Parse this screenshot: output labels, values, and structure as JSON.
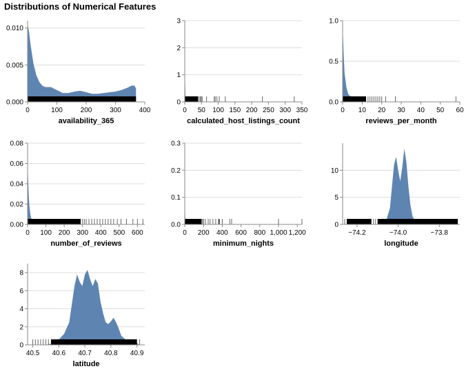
{
  "title": "Distributions of Numerical Features",
  "colors": {
    "density": "#4c78a8",
    "rug": "#000000",
    "grid": "#dddddd",
    "axis": "#888888"
  },
  "chart_data": [
    {
      "type": "area",
      "xlabel": "availability_365",
      "xlim": [
        0,
        400
      ],
      "xticks": [
        0,
        100,
        200,
        300,
        400
      ],
      "xtick_labels": [
        "0",
        "100",
        "200",
        "300",
        "400"
      ],
      "ylim": [
        0,
        0.011
      ],
      "yticks": [
        0,
        0.005,
        0.01
      ],
      "ytick_labels": [
        "0.000",
        "0.005",
        "0.010"
      ],
      "density": {
        "x": [
          0,
          5,
          10,
          20,
          30,
          40,
          50,
          60,
          70,
          80,
          90,
          100,
          120,
          140,
          160,
          180,
          200,
          220,
          240,
          260,
          280,
          300,
          320,
          340,
          355,
          365,
          370
        ],
        "y": [
          0.0105,
          0.0095,
          0.0078,
          0.0052,
          0.0036,
          0.0027,
          0.0022,
          0.002,
          0.002,
          0.002,
          0.0018,
          0.0016,
          0.0012,
          0.0012,
          0.0014,
          0.0015,
          0.0013,
          0.0011,
          0.0011,
          0.0012,
          0.0013,
          0.0014,
          0.0016,
          0.0019,
          0.0022,
          0.0022,
          0.0018
        ]
      },
      "rug": {
        "ranges": [
          [
            0,
            370
          ]
        ],
        "points": []
      }
    },
    {
      "type": "area",
      "xlabel": "calculated_host_listings_count",
      "xlim": [
        0,
        350
      ],
      "xticks": [
        0,
        50,
        100,
        150,
        200,
        250,
        300,
        350
      ],
      "xtick_labels": [
        "0",
        "50",
        "100",
        "150",
        "200",
        "250",
        "300",
        "350"
      ],
      "ylim": [
        0,
        3
      ],
      "yticks": [
        0,
        1,
        2,
        3
      ],
      "ytick_labels": [
        "0",
        "1",
        "2",
        "3"
      ],
      "density": {
        "x": [
          0,
          0.5,
          1,
          2,
          3,
          5
        ],
        "y": [
          1.1,
          1.1,
          0.8,
          0.2,
          0.05,
          0
        ]
      },
      "rug": {
        "ranges": [
          [
            0,
            40
          ]
        ],
        "points": [
          43,
          47,
          49,
          52,
          65,
          88,
          91,
          96,
          103,
          121,
          232,
          327
        ]
      }
    },
    {
      "type": "area",
      "xlabel": "reviews_per_month",
      "xlim": [
        0,
        60
      ],
      "xticks": [
        0,
        10,
        20,
        30,
        40,
        50,
        60
      ],
      "xtick_labels": [
        "0",
        "10",
        "20",
        "30",
        "40",
        "50",
        "60"
      ],
      "ylim": [
        0,
        1.0
      ],
      "yticks": [
        0,
        0.5,
        1.0
      ],
      "ytick_labels": [
        "0.0",
        "0.5",
        "1.0"
      ],
      "density": {
        "x": [
          0,
          0.5,
          1,
          2,
          3,
          4,
          5,
          6,
          8,
          10
        ],
        "y": [
          0.95,
          0.6,
          0.35,
          0.17,
          0.09,
          0.07,
          0.05,
          0.03,
          0.01,
          0
        ]
      },
      "rug": {
        "ranges": [
          [
            0,
            12
          ]
        ],
        "points": [
          13,
          14,
          15,
          16,
          17,
          18,
          19,
          20,
          22,
          27,
          58
        ]
      }
    },
    {
      "type": "area",
      "xlabel": "number_of_reviews",
      "xlim": [
        0,
        640
      ],
      "xticks": [
        0,
        100,
        200,
        300,
        400,
        500,
        600
      ],
      "xtick_labels": [
        "0",
        "100",
        "200",
        "300",
        "400",
        "500",
        "600"
      ],
      "ylim": [
        0,
        0.08
      ],
      "yticks": [
        0,
        0.02,
        0.04,
        0.06,
        0.08
      ],
      "ytick_labels": [
        "0.00",
        "0.02",
        "0.04",
        "0.06",
        "0.08"
      ],
      "density": {
        "x": [
          0,
          3,
          6,
          10,
          15,
          20,
          30,
          40,
          60
        ],
        "y": [
          0.062,
          0.045,
          0.03,
          0.018,
          0.01,
          0.006,
          0.003,
          0.0015,
          0
        ]
      },
      "rug": {
        "ranges": [
          [
            0,
            290
          ]
        ],
        "points": [
          300,
          310,
          320,
          335,
          350,
          365,
          380,
          395,
          410,
          425,
          440,
          455,
          470,
          490,
          510,
          540,
          575,
          600,
          630
        ]
      }
    },
    {
      "type": "area",
      "xlabel": "minimum_nights",
      "xlim": [
        0,
        1250
      ],
      "xticks": [
        0,
        200,
        400,
        600,
        800,
        1000,
        1200
      ],
      "xtick_labels": [
        "0",
        "200",
        "400",
        "600",
        "800",
        "1,000",
        "1,200"
      ],
      "ylim": [
        0,
        0.3
      ],
      "yticks": [
        0,
        0.1,
        0.2,
        0.3
      ],
      "ytick_labels": [
        "0.0",
        "0.1",
        "0.2",
        "0.3"
      ],
      "density": {
        "x": [
          0,
          3,
          6,
          10,
          20,
          30
        ],
        "y": [
          0.1,
          0.05,
          0.02,
          0.008,
          0.002,
          0
        ]
      },
      "rug": {
        "ranges": [
          [
            0,
            180
          ]
        ],
        "points": [
          190,
          200,
          220,
          250,
          270,
          300,
          330,
          360,
          365,
          370,
          400,
          480,
          500,
          1000,
          1250
        ]
      }
    },
    {
      "type": "area",
      "xlabel": "longitude",
      "xlim": [
        -74.27,
        -73.7
      ],
      "xticks": [
        -74.2,
        -74.0,
        -73.8
      ],
      "xtick_labels": [
        "−74.2",
        "−74.0",
        "−73.8"
      ],
      "ylim": [
        0,
        15
      ],
      "yticks": [
        0,
        5,
        10
      ],
      "ytick_labels": [
        "0",
        "5",
        "10"
      ],
      "density": {
        "x": [
          -74.1,
          -74.06,
          -74.04,
          -74.03,
          -74.02,
          -74.01,
          -74.0,
          -73.99,
          -73.98,
          -73.97,
          -73.96,
          -73.95,
          -73.94,
          -73.93,
          -73.92,
          -73.9,
          -73.88,
          -73.85,
          -73.8,
          -73.75,
          -73.71
        ],
        "y": [
          0,
          0.5,
          3,
          7,
          11,
          12.5,
          10,
          8,
          10.5,
          14,
          11.5,
          7,
          3.5,
          1.5,
          0.8,
          0.5,
          0.4,
          0.3,
          0.2,
          0.1,
          0
        ]
      },
      "rug": {
        "ranges": [
          [
            -74.25,
            -74.13
          ],
          [
            -74.1,
            -73.71
          ]
        ],
        "points": [
          -74.27,
          -74.26,
          -74.12,
          -74.11
        ]
      }
    },
    {
      "type": "area",
      "xlabel": "latitude",
      "xlim": [
        40.48,
        40.93
      ],
      "xticks": [
        40.5,
        40.6,
        40.7,
        40.8,
        40.9
      ],
      "xtick_labels": [
        "40.5",
        "40.6",
        "40.7",
        "40.8",
        "40.9"
      ],
      "ylim": [
        0,
        9
      ],
      "yticks": [
        0,
        2,
        4,
        6,
        8
      ],
      "ytick_labels": [
        "0",
        "2",
        "4",
        "6",
        "8"
      ],
      "density": {
        "x": [
          40.55,
          40.58,
          40.6,
          40.62,
          40.64,
          40.65,
          40.66,
          40.67,
          40.68,
          40.69,
          40.7,
          40.71,
          40.72,
          40.73,
          40.74,
          40.75,
          40.76,
          40.77,
          40.78,
          40.79,
          40.8,
          40.81,
          40.82,
          40.83,
          40.84,
          40.86,
          40.88,
          40.9,
          40.91
        ],
        "y": [
          0,
          0.2,
          0.6,
          1.2,
          2.5,
          4.5,
          6.5,
          7.8,
          7.0,
          6.5,
          7.8,
          8.3,
          7.3,
          6.5,
          7.3,
          6.8,
          4.8,
          3.5,
          2.5,
          2.3,
          2.6,
          3.0,
          2.5,
          1.8,
          1.0,
          0.5,
          0.3,
          0.2,
          0
        ]
      },
      "rug": {
        "ranges": [
          [
            40.57,
            40.9
          ]
        ],
        "points": [
          40.5,
          40.51,
          40.52,
          40.53,
          40.54,
          40.55,
          40.56,
          40.91
        ]
      }
    }
  ]
}
